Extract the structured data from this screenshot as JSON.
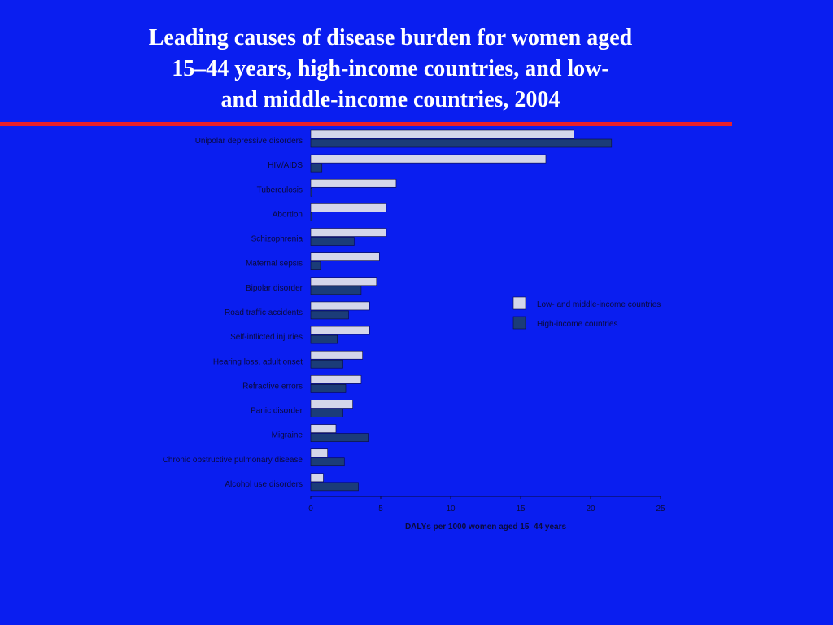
{
  "slide": {
    "title_lines": [
      "Leading causes of disease burden for women aged",
      "15–44 years, high-income countries, and low-",
      "and middle-income countries, 2004"
    ],
    "background_color": "#0a1ef0",
    "rule_color": "#e8202a"
  },
  "chart_data": {
    "type": "bar",
    "orientation": "horizontal",
    "categories": [
      "Unipolar depressive disorders",
      "HIV/AIDS",
      "Tuberculosis",
      "Abortion",
      "Schizophrenia",
      "Maternal sepsis",
      "Bipolar disorder",
      "Road traffic accidents",
      "Self-inflicted injuries",
      "Hearing loss, adult onset",
      "Refractive errors",
      "Panic disorder",
      "Migraine",
      "Chronic obstructive pulmonary disease",
      "Alcohol use disorders"
    ],
    "series": [
      {
        "name": "Low- and middle-income countries",
        "color": "#d4d6ea",
        "values": [
          18.8,
          16.8,
          6.1,
          5.4,
          5.4,
          4.9,
          4.7,
          4.2,
          4.2,
          3.7,
          3.6,
          3.0,
          1.8,
          1.2,
          0.9
        ]
      },
      {
        "name": "High-income countries",
        "color": "#1b3c78",
        "values": [
          21.5,
          0.8,
          0.1,
          0.1,
          3.1,
          0.7,
          3.6,
          2.7,
          1.9,
          2.3,
          2.5,
          2.3,
          4.1,
          2.4,
          3.4
        ]
      }
    ],
    "x_ticks": [
      "0",
      "5",
      "10",
      "15",
      "20",
      "25"
    ],
    "xlim": [
      0,
      25
    ],
    "xlabel": "DALYs per 1000 women aged 15–44 years",
    "legend_position": "right",
    "grid": false
  }
}
